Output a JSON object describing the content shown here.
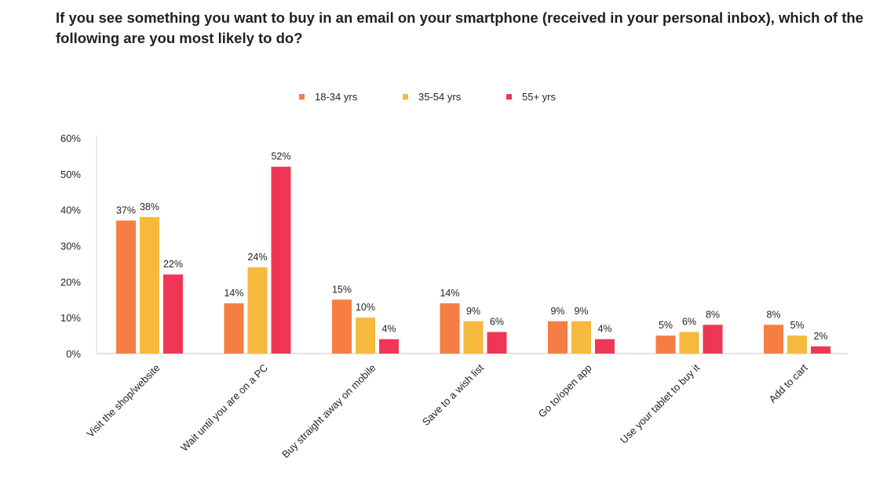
{
  "chart_data": {
    "type": "bar",
    "title": "If you see something you want to buy in an email on your smartphone (received in your personal inbox), which of the following are you most likely to do?",
    "xlabel": "",
    "ylabel": "",
    "ylim": [
      0,
      60
    ],
    "yticks": [
      "0%",
      "10%",
      "20%",
      "30%",
      "40%",
      "50%",
      "60%"
    ],
    "grid": false,
    "legend_position": "top-center",
    "categories": [
      "Visit the shop/website",
      "Wait until you are on a PC",
      "Buy straight away on mobile",
      "Save to a wish list",
      "Go to/open app",
      "Use your tablet to buy it",
      "Add to cart"
    ],
    "series": [
      {
        "name": "18-34 yrs",
        "color": "#F47E43",
        "values": [
          37,
          14,
          15,
          14,
          9,
          5,
          8
        ]
      },
      {
        "name": "35-54 yrs",
        "color": "#F5B93D",
        "values": [
          38,
          24,
          10,
          9,
          9,
          6,
          5
        ]
      },
      {
        "name": "55+ yrs",
        "color": "#EF3656",
        "values": [
          22,
          52,
          4,
          6,
          4,
          8,
          2
        ]
      }
    ]
  }
}
